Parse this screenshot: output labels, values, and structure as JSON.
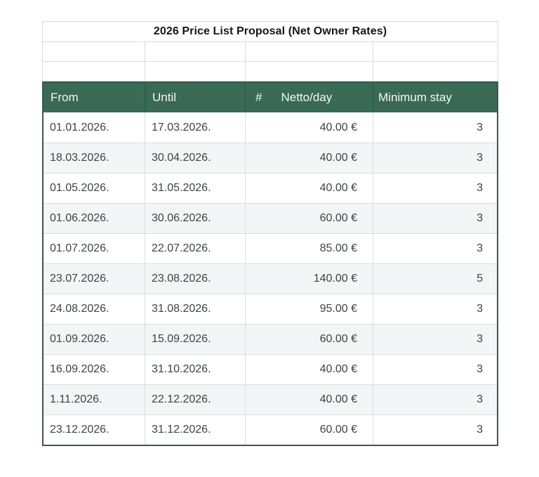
{
  "title": "2026 Price List Proposal (Net Owner Rates)",
  "table": {
    "headers": {
      "from": "From",
      "until": "Until",
      "hash": "#",
      "netto": "Netto/day",
      "min_stay": "Minimum stay"
    },
    "rows": [
      {
        "from": "01.01.2026.",
        "until": "17.03.2026.",
        "netto": "40.00 €",
        "min_stay": "3"
      },
      {
        "from": "18.03.2026.",
        "until": "30.04.2026.",
        "netto": "40.00 €",
        "min_stay": "3"
      },
      {
        "from": "01.05.2026.",
        "until": "31.05.2026.",
        "netto": "40.00 €",
        "min_stay": "3"
      },
      {
        "from": "01.06.2026.",
        "until": "30.06.2026.",
        "netto": "60.00 €",
        "min_stay": "3"
      },
      {
        "from": "01.07.2026.",
        "until": "22.07.2026.",
        "netto": "85.00 €",
        "min_stay": "3"
      },
      {
        "from": "23.07.2026.",
        "until": "23.08.2026.",
        "netto": "140.00 €",
        "min_stay": "5"
      },
      {
        "from": "24.08.2026.",
        "until": "31.08.2026.",
        "netto": "95.00 €",
        "min_stay": "3"
      },
      {
        "from": "01.09.2026.",
        "until": "15.09.2026.",
        "netto": "60.00 €",
        "min_stay": "3"
      },
      {
        "from": "16.09.2026.",
        "until": "31.10.2026.",
        "netto": "40.00 €",
        "min_stay": "3"
      },
      {
        "from": "1.11.2026.",
        "until": "22.12.2026.",
        "netto": "40.00 €",
        "min_stay": "3"
      },
      {
        "from": "23.12.2026.",
        "until": "31.12.2026.",
        "netto": "60.00 €",
        "min_stay": "3"
      }
    ]
  },
  "colors": {
    "header_bg": "#386a56",
    "header_text": "#f5f8f6",
    "outer_border": "#3e564c",
    "grid_line": "#dadddd",
    "light_border": "#d8dadb",
    "row_bg": "#ffffff",
    "alt_row_bg": "#f3f5f6",
    "text": "#3f4346",
    "title_text": "#161616"
  }
}
